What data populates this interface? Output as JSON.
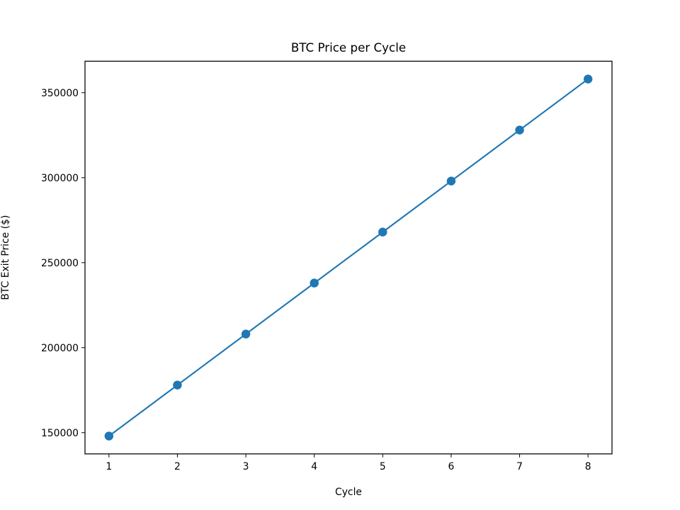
{
  "chart_data": {
    "type": "line",
    "title": "BTC Price per Cycle",
    "xlabel": "Cycle",
    "ylabel": "BTC Exit Price ($)",
    "x": [
      1,
      2,
      3,
      4,
      5,
      6,
      7,
      8
    ],
    "series": [
      {
        "values": [
          148000,
          178000,
          208000,
          238000,
          268000,
          298000,
          328000,
          358000
        ],
        "color": "#1f77b4",
        "marker": "circle"
      }
    ],
    "xlim": [
      0.65,
      8.35
    ],
    "ylim": [
      137500,
      368500
    ],
    "xticks": [
      1,
      2,
      3,
      4,
      5,
      6,
      7,
      8
    ],
    "yticks": [
      150000,
      200000,
      250000,
      300000,
      350000
    ],
    "grid": false,
    "legend": "none"
  }
}
